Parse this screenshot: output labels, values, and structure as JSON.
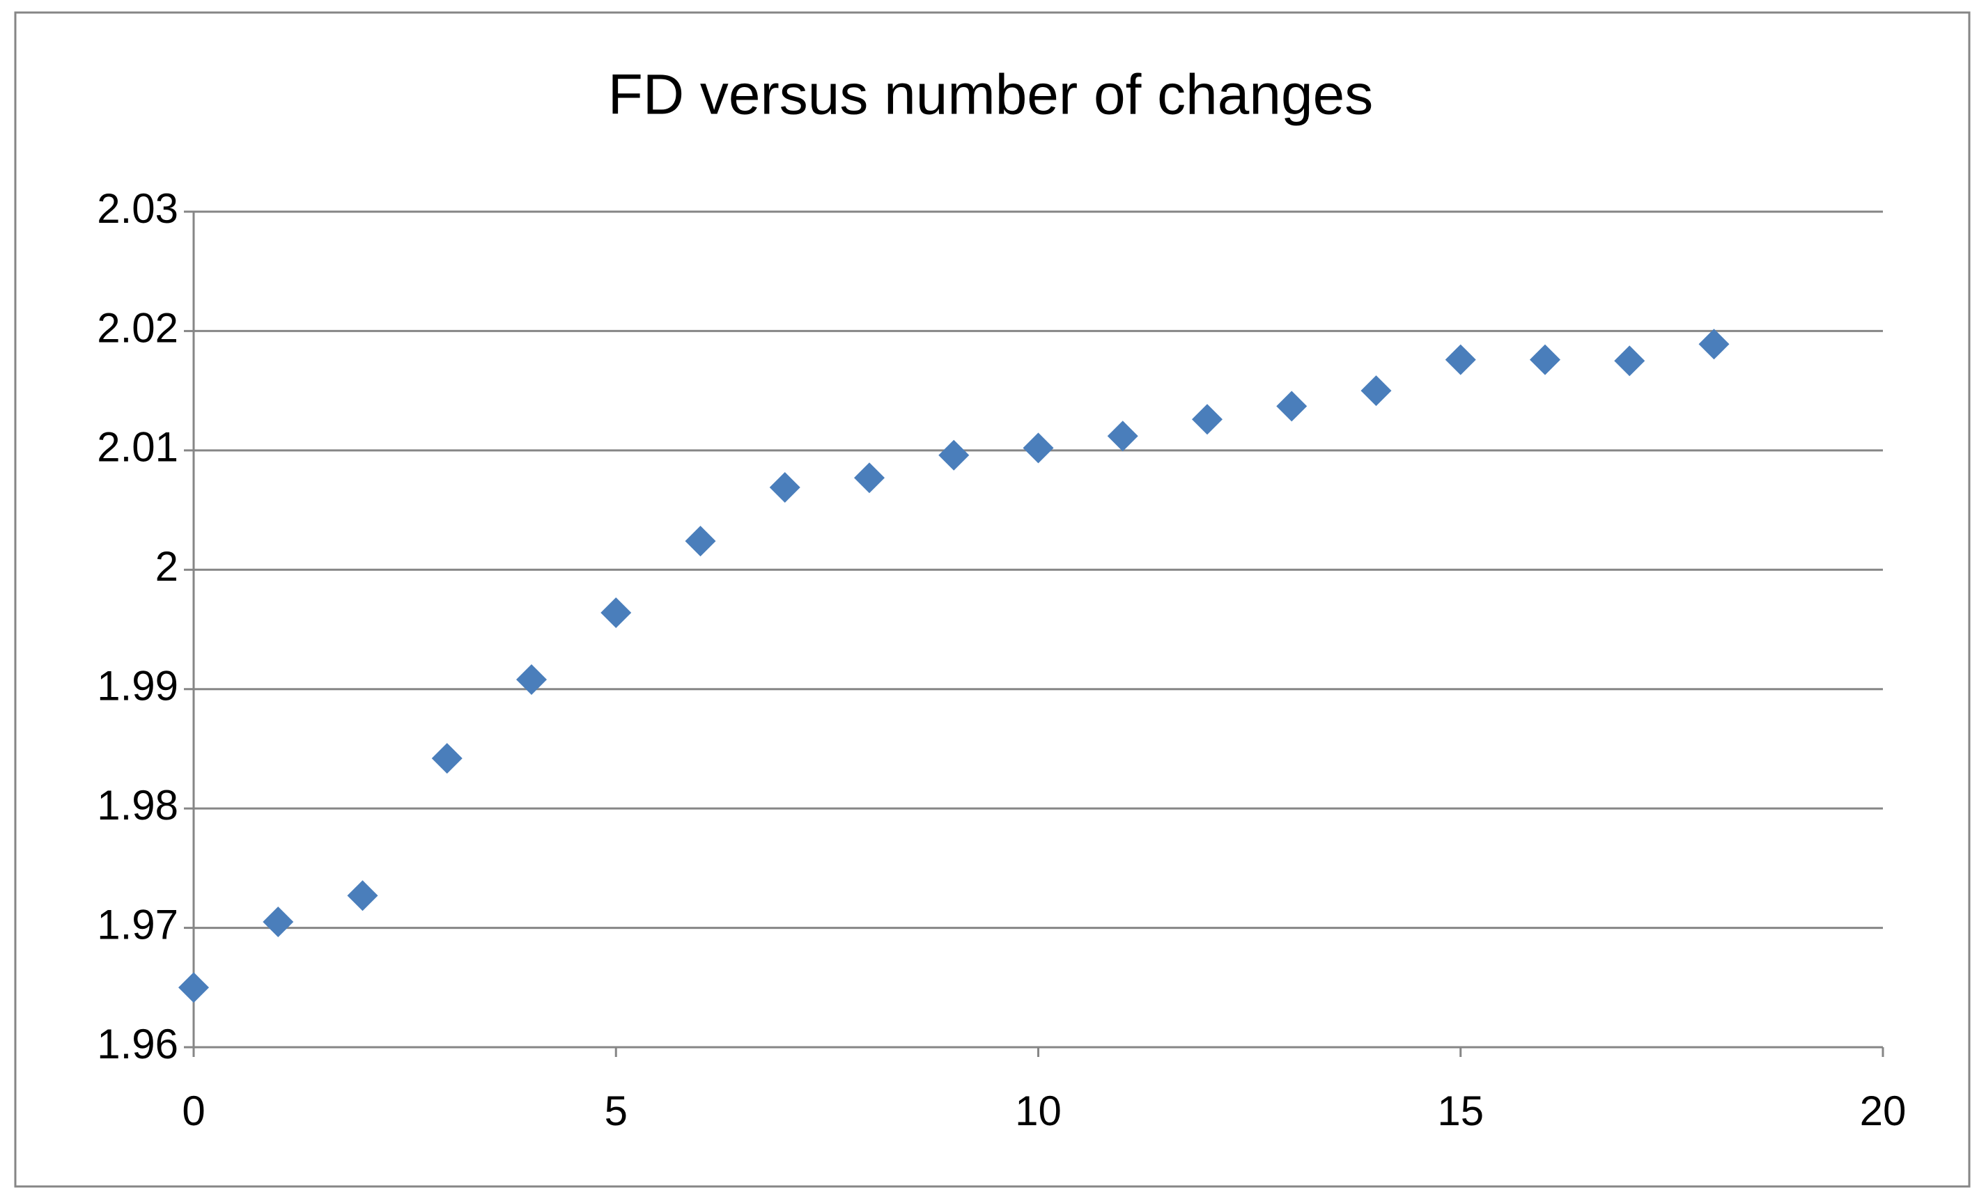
{
  "chart_data": {
    "type": "scatter",
    "title": "FD versus number of changes",
    "x": [
      0,
      1,
      2,
      3,
      4,
      5,
      6,
      7,
      8,
      9,
      10,
      11,
      12,
      13,
      14,
      15,
      16,
      17,
      18
    ],
    "series": [
      {
        "color": "#4a7ebb",
        "values": [
          1.965,
          1.9705,
          1.9727,
          1.9842,
          1.9908,
          1.9964,
          2.0024,
          2.0069,
          2.0077,
          2.0096,
          2.0102,
          2.0112,
          2.0126,
          2.0137,
          2.015,
          2.0176,
          2.0176,
          2.0175,
          2.0189
        ]
      }
    ],
    "xlim": [
      0,
      20
    ],
    "xticks": [
      0,
      5,
      10,
      15,
      20
    ],
    "ylim": [
      1.96,
      2.03
    ],
    "yticks": [
      1.96,
      1.97,
      1.98,
      1.99,
      2,
      2.01,
      2.02,
      2.03
    ],
    "grid": true
  }
}
